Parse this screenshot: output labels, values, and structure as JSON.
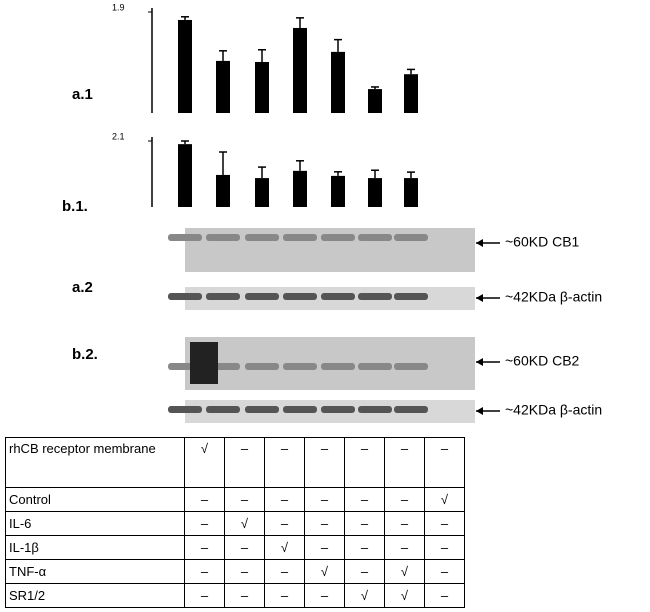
{
  "chart_data": [
    {
      "type": "bar",
      "label": "a.1",
      "categories": [
        null,
        null,
        null,
        null,
        null,
        null,
        null
      ],
      "values": [
        1.75,
        0.98,
        0.96,
        1.6,
        1.15,
        0.45,
        0.73
      ],
      "errors": [
        0.06,
        0.19,
        0.23,
        0.19,
        0.23,
        0.04,
        0.09
      ],
      "color": "#000000",
      "ylim": [
        0,
        1.9
      ],
      "yticks": [
        1.9
      ]
    },
    {
      "type": "bar",
      "label": "b.1.",
      "categories": [
        null,
        null,
        null,
        null,
        null,
        null,
        null
      ],
      "values": [
        2.0,
        1.02,
        0.92,
        1.15,
        0.99,
        0.92,
        0.92
      ],
      "errors": [
        0.1,
        0.73,
        0.35,
        0.32,
        0.13,
        0.25,
        0.19
      ],
      "color": "#000000",
      "ylim": [
        0,
        2.1
      ],
      "yticks": [
        2.1
      ]
    }
  ],
  "blots": {
    "a2_label": "a.2",
    "b2_label": "b.2.",
    "bands": [
      "~60KD CB1",
      "~42KDa β-actin",
      "~60KD CB2",
      "~42KDa β-actin"
    ]
  },
  "table": {
    "rows": [
      [
        "rhCB receptor membrane",
        "√",
        "–",
        "–",
        "–",
        "–",
        "–",
        "–"
      ],
      [
        "Control",
        "–",
        "–",
        "–",
        "–",
        "–",
        "–",
        "√"
      ],
      [
        "IL-6",
        "–",
        "√",
        "–",
        "–",
        "–",
        "–",
        "–"
      ],
      [
        "IL-1β",
        "–",
        "–",
        "√",
        "–",
        "–",
        "–",
        "–"
      ],
      [
        "TNF-α",
        "–",
        "–",
        "–",
        "√",
        "–",
        "√",
        "–"
      ],
      [
        "SR1/2",
        "–",
        "–",
        "–",
        "–",
        "√",
        "√",
        "–"
      ]
    ]
  }
}
